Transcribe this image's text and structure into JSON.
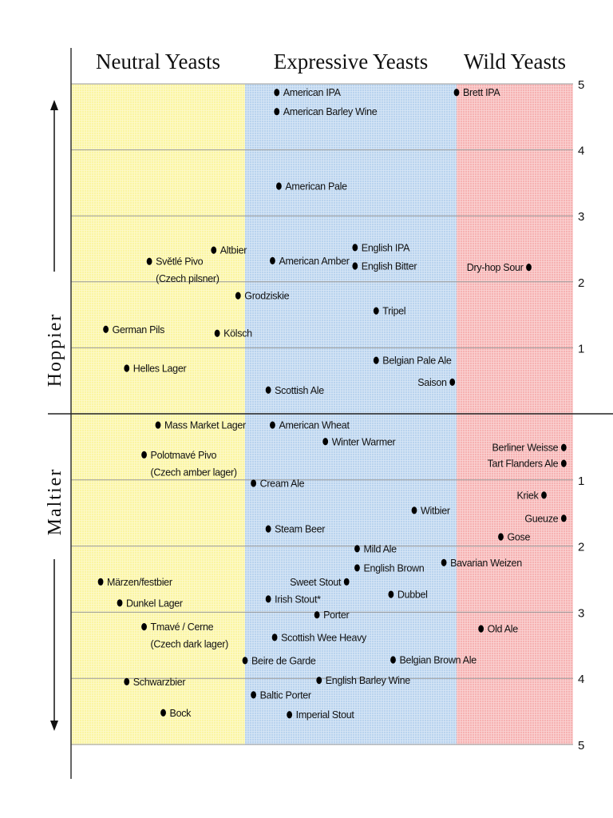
{
  "chart_data": {
    "type": "scatter",
    "columns": [
      {
        "name": "Neutral Yeasts",
        "color": "#fbf5a2",
        "xrange": [
          0,
          1
        ]
      },
      {
        "name": "Expressive Yeasts",
        "color": "#b9d3ee",
        "xrange": [
          1,
          2
        ]
      },
      {
        "name": "Wild Yeasts",
        "color": "#f6b2b2",
        "xrange": [
          2,
          3
        ]
      }
    ],
    "upper_axis": {
      "label": "Hoppier",
      "range": [
        0,
        5
      ],
      "ticks": [
        "1",
        "2",
        "3",
        "4",
        "5"
      ]
    },
    "lower_axis": {
      "label": "Maltier",
      "range": [
        0,
        5
      ],
      "ticks": [
        "1",
        "2",
        "3",
        "4",
        "5"
      ]
    },
    "grid": true,
    "points": [
      {
        "name": "Světlé Pivo",
        "sub": "(Czech pilsner)",
        "x": 0.45,
        "axis": "hoppy",
        "y": 2.31
      },
      {
        "name": "Altbier",
        "x": 0.82,
        "axis": "hoppy",
        "y": 2.48
      },
      {
        "name": "Grodziskie",
        "x": 0.96,
        "axis": "hoppy",
        "y": 1.79
      },
      {
        "name": "German Pils",
        "x": 0.2,
        "axis": "hoppy",
        "y": 1.28
      },
      {
        "name": "Kölsch",
        "x": 0.84,
        "axis": "hoppy",
        "y": 1.22
      },
      {
        "name": "Helles Lager",
        "x": 0.32,
        "axis": "hoppy",
        "y": 0.69
      },
      {
        "name": "American IPA",
        "x": 1.15,
        "axis": "hoppy",
        "y": 4.87
      },
      {
        "name": "American Barley Wine",
        "x": 1.15,
        "axis": "hoppy",
        "y": 4.58
      },
      {
        "name": "American Pale",
        "x": 1.16,
        "axis": "hoppy",
        "y": 3.45
      },
      {
        "name": "English IPA",
        "x": 1.52,
        "axis": "hoppy",
        "y": 2.52
      },
      {
        "name": "American Amber",
        "x": 1.13,
        "axis": "hoppy",
        "y": 2.32
      },
      {
        "name": "English Bitter",
        "x": 1.52,
        "axis": "hoppy",
        "y": 2.24
      },
      {
        "name": "Tripel",
        "x": 1.62,
        "axis": "hoppy",
        "y": 1.56
      },
      {
        "name": "Belgian Pale Ale",
        "x": 1.62,
        "axis": "hoppy",
        "y": 0.81
      },
      {
        "name": "Saison",
        "x": 1.98,
        "axis": "hoppy",
        "y": 0.48,
        "label": "left"
      },
      {
        "name": "Scottish Ale",
        "x": 1.11,
        "axis": "hoppy",
        "y": 0.36
      },
      {
        "name": "Brett IPA",
        "x": 2.0,
        "axis": "hoppy",
        "y": 4.87
      },
      {
        "name": "Dry-hop Sour",
        "x": 2.62,
        "axis": "hoppy",
        "y": 2.22,
        "label": "left"
      },
      {
        "name": "Mass Market Lager",
        "x": 0.5,
        "axis": "malty",
        "y": 0.17
      },
      {
        "name": "Polotmavé Pivo",
        "sub": "(Czech amber lager)",
        "x": 0.42,
        "axis": "malty",
        "y": 0.62
      },
      {
        "name": "Märzen/festbier",
        "x": 0.17,
        "axis": "malty",
        "y": 2.54
      },
      {
        "name": "Dunkel Lager",
        "x": 0.28,
        "axis": "malty",
        "y": 2.86
      },
      {
        "name": "Tmavé / Cerne",
        "sub": "(Czech dark lager)",
        "x": 0.42,
        "axis": "malty",
        "y": 3.22
      },
      {
        "name": "Schwarzbier",
        "x": 0.32,
        "axis": "malty",
        "y": 4.05
      },
      {
        "name": "Bock",
        "x": 0.53,
        "axis": "malty",
        "y": 4.52
      },
      {
        "name": "American Wheat",
        "x": 1.13,
        "axis": "malty",
        "y": 0.17
      },
      {
        "name": "Winter Warmer",
        "x": 1.38,
        "axis": "malty",
        "y": 0.42
      },
      {
        "name": "Cream Ale",
        "x": 1.04,
        "axis": "malty",
        "y": 1.05
      },
      {
        "name": "Witbier",
        "x": 1.8,
        "axis": "malty",
        "y": 1.46
      },
      {
        "name": "Steam Beer",
        "x": 1.11,
        "axis": "malty",
        "y": 1.74
      },
      {
        "name": "Mild Ale",
        "x": 1.53,
        "axis": "malty",
        "y": 2.04
      },
      {
        "name": "English Brown",
        "x": 1.53,
        "axis": "malty",
        "y": 2.33
      },
      {
        "name": "Sweet Stout",
        "x": 1.48,
        "axis": "malty",
        "y": 2.54,
        "label": "left"
      },
      {
        "name": "Irish Stout*",
        "x": 1.11,
        "axis": "malty",
        "y": 2.8
      },
      {
        "name": "Dubbel",
        "x": 1.69,
        "axis": "malty",
        "y": 2.73
      },
      {
        "name": "Porter",
        "x": 1.34,
        "axis": "malty",
        "y": 3.04
      },
      {
        "name": "Scottish Wee Heavy",
        "x": 1.14,
        "axis": "malty",
        "y": 3.38
      },
      {
        "name": "Beire de Garde",
        "x": 1.0,
        "axis": "malty",
        "y": 3.73
      },
      {
        "name": "Belgian Brown Ale",
        "x": 1.7,
        "axis": "malty",
        "y": 3.72
      },
      {
        "name": "English Barley Wine",
        "x": 1.35,
        "axis": "malty",
        "y": 4.03
      },
      {
        "name": "Baltic Porter",
        "x": 1.04,
        "axis": "malty",
        "y": 4.25
      },
      {
        "name": "Imperial Stout",
        "x": 1.21,
        "axis": "malty",
        "y": 4.55
      },
      {
        "name": "Bavarian Weizen",
        "x": 1.94,
        "axis": "malty",
        "y": 2.25
      },
      {
        "name": "Berliner Weisse",
        "x": 2.92,
        "axis": "malty",
        "y": 0.51,
        "label": "left"
      },
      {
        "name": "Tart Flanders Ale",
        "x": 2.92,
        "axis": "malty",
        "y": 0.75,
        "label": "left"
      },
      {
        "name": "Kriek",
        "x": 2.75,
        "axis": "malty",
        "y": 1.23,
        "label": "left"
      },
      {
        "name": "Gueuze",
        "x": 2.92,
        "axis": "malty",
        "y": 1.58,
        "label": "left"
      },
      {
        "name": "Gose",
        "x": 2.38,
        "axis": "malty",
        "y": 1.86
      },
      {
        "name": "Old Ale",
        "x": 2.21,
        "axis": "malty",
        "y": 3.25
      }
    ]
  }
}
